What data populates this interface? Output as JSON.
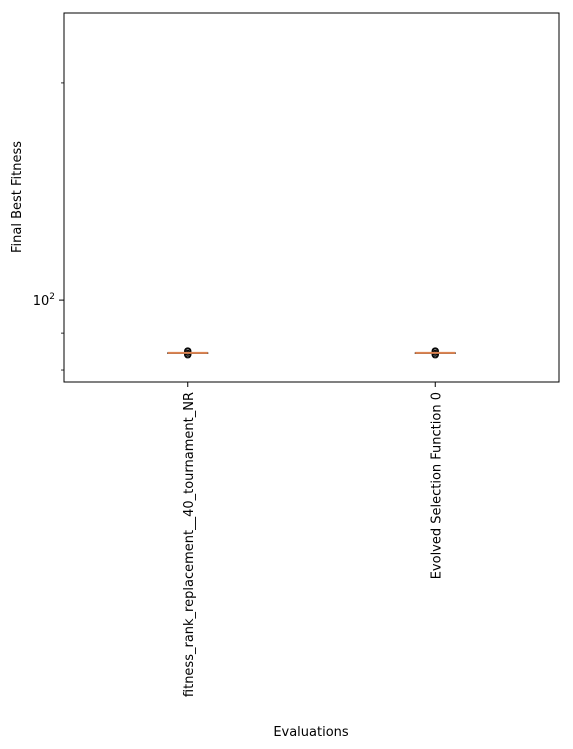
{
  "chart_data": {
    "type": "box",
    "xlabel": "Evaluations",
    "ylabel": "Final Best Fitness",
    "yscale": "log",
    "ylim": [
      77,
      250
    ],
    "y_ticks": [
      {
        "value": 100,
        "base": "10",
        "exponent": "2"
      }
    ],
    "categories": [
      "fitness_rank_replacement__40_tournament_NR",
      "Evolved Selection Function 0"
    ],
    "series": [
      {
        "category": "fitness_rank_replacement__40_tournament_NR",
        "median": 84.5,
        "q1": 84.5,
        "q3": 84.5,
        "whisker_low": 84.5,
        "whisker_high": 84.5,
        "outliers": [
          84.0,
          84.3,
          84.7,
          85.0
        ]
      },
      {
        "category": "Evolved Selection Function 0",
        "median": 84.5,
        "q1": 84.5,
        "q3": 84.5,
        "whisker_low": 84.5,
        "whisker_high": 84.5,
        "outliers": [
          84.0,
          84.3,
          84.7,
          85.0
        ]
      }
    ],
    "grid": false,
    "colors": {
      "median": "#dd8452",
      "box": "#000000",
      "outlier": "#000000"
    }
  }
}
